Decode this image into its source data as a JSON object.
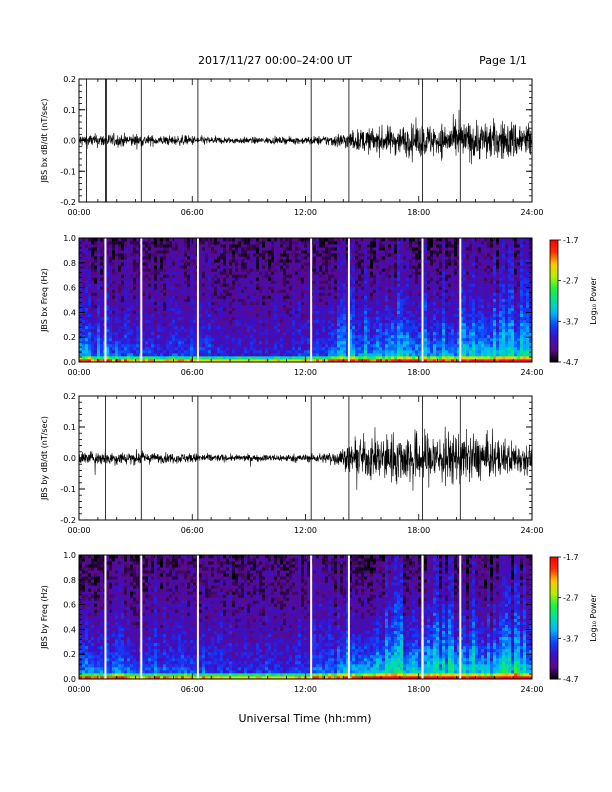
{
  "header": {
    "date_range": "2017/11/27   00:00–24:00 UT",
    "page": "Page 1/1"
  },
  "footer": {
    "xaxis_title": "Universal Time (hh:mm)"
  },
  "colorbar": {
    "label": "Log₁₀ Power",
    "ticks": [
      "-1.7",
      "-2.7",
      "-3.7",
      "-4.7"
    ],
    "tick_values": [
      -1.7,
      -2.7,
      -3.7,
      -4.7
    ],
    "range": [
      -4.7,
      -1.7
    ],
    "colors": [
      "#000000",
      "#5a0a8c",
      "#3a10c8",
      "#1040ff",
      "#00b4ff",
      "#00e0a0",
      "#20f040",
      "#b4f000",
      "#ffc800",
      "#ff3000",
      "#ff0000"
    ]
  },
  "gap_times_hours": [
    1.4,
    3.3,
    6.3,
    12.3,
    14.3,
    18.2,
    20.2
  ],
  "chart_data": [
    {
      "type": "line",
      "ylabel": "JBS bx dB/dt (nT/sec)",
      "ylim": [
        -0.2,
        0.2
      ],
      "yticks": [
        -0.2,
        -0.1,
        0.0,
        0.1,
        0.2
      ],
      "ytick_labels": [
        "-0.2",
        "-0.1",
        "0.0",
        "0.1",
        "0.2"
      ],
      "xlim": [
        0,
        24
      ],
      "xtick_labels": [
        "00:00",
        "06:00",
        "12:00",
        "18:00",
        "24:00"
      ],
      "x_hours": [
        0,
        1,
        2,
        3,
        4,
        5,
        6,
        7,
        8,
        9,
        10,
        11,
        12,
        13,
        14,
        15,
        16,
        17,
        18,
        19,
        20,
        21,
        22,
        23,
        24
      ],
      "envelope": [
        0.02,
        0.02,
        0.02,
        0.02,
        0.015,
        0.015,
        0.015,
        0.012,
        0.01,
        0.01,
        0.01,
        0.01,
        0.012,
        0.015,
        0.025,
        0.035,
        0.04,
        0.045,
        0.05,
        0.05,
        0.055,
        0.06,
        0.06,
        0.06,
        0.06
      ]
    },
    {
      "type": "heatmap",
      "ylabel": "JBS bx Freq (Hz)",
      "ylim": [
        0.0,
        1.0
      ],
      "yticks": [
        0.0,
        0.2,
        0.4,
        0.6,
        0.8,
        1.0
      ],
      "ytick_labels": [
        "0.0",
        "0.2",
        "0.4",
        "0.6",
        "0.8",
        "1.0"
      ],
      "xlim": [
        0,
        24
      ],
      "xtick_labels": [
        "00:00",
        "06:00",
        "12:00",
        "18:00",
        "24:00"
      ],
      "x_hours": [
        0,
        1,
        2,
        3,
        4,
        5,
        6,
        7,
        8,
        9,
        10,
        11,
        12,
        13,
        14,
        15,
        16,
        17,
        18,
        19,
        20,
        21,
        22,
        23,
        24
      ],
      "activity": [
        0.55,
        0.5,
        0.45,
        0.4,
        0.35,
        0.3,
        0.35,
        0.3,
        0.25,
        0.25,
        0.25,
        0.25,
        0.3,
        0.4,
        0.55,
        0.6,
        0.6,
        0.65,
        0.65,
        0.65,
        0.65,
        0.65,
        0.7,
        0.7,
        0.7
      ]
    },
    {
      "type": "line",
      "ylabel": "JBS by dB/dt (nT/sec)",
      "ylim": [
        -0.2,
        0.2
      ],
      "yticks": [
        -0.2,
        -0.1,
        0.0,
        0.1,
        0.2
      ],
      "ytick_labels": [
        "-0.2",
        "-0.1",
        "0.0",
        "0.1",
        "0.2"
      ],
      "xlim": [
        0,
        24
      ],
      "xtick_labels": [
        "00:00",
        "06:00",
        "12:00",
        "18:00",
        "24:00"
      ],
      "x_hours": [
        0,
        1,
        2,
        3,
        4,
        5,
        6,
        7,
        8,
        9,
        10,
        11,
        12,
        13,
        14,
        15,
        16,
        17,
        18,
        19,
        20,
        21,
        22,
        23,
        24
      ],
      "envelope": [
        0.02,
        0.02,
        0.02,
        0.02,
        0.015,
        0.015,
        0.015,
        0.012,
        0.01,
        0.01,
        0.01,
        0.012,
        0.012,
        0.015,
        0.03,
        0.06,
        0.07,
        0.075,
        0.08,
        0.08,
        0.075,
        0.07,
        0.06,
        0.05,
        0.045
      ]
    },
    {
      "type": "heatmap",
      "ylabel": "JBS by Freq (Hz)",
      "ylim": [
        0.0,
        1.0
      ],
      "yticks": [
        0.0,
        0.2,
        0.4,
        0.6,
        0.8,
        1.0
      ],
      "ytick_labels": [
        "0.0",
        "0.2",
        "0.4",
        "0.6",
        "0.8",
        "1.0"
      ],
      "xlim": [
        0,
        24
      ],
      "xtick_labels": [
        "00:00",
        "06:00",
        "12:00",
        "18:00",
        "24:00"
      ],
      "x_hours": [
        0,
        1,
        2,
        3,
        4,
        5,
        6,
        7,
        8,
        9,
        10,
        11,
        12,
        13,
        14,
        15,
        16,
        17,
        18,
        19,
        20,
        21,
        22,
        23,
        24
      ],
      "activity": [
        0.6,
        0.55,
        0.5,
        0.45,
        0.4,
        0.4,
        0.4,
        0.35,
        0.3,
        0.3,
        0.3,
        0.3,
        0.35,
        0.45,
        0.6,
        0.7,
        0.75,
        0.75,
        0.75,
        0.75,
        0.75,
        0.75,
        0.75,
        0.75,
        0.75
      ]
    }
  ]
}
